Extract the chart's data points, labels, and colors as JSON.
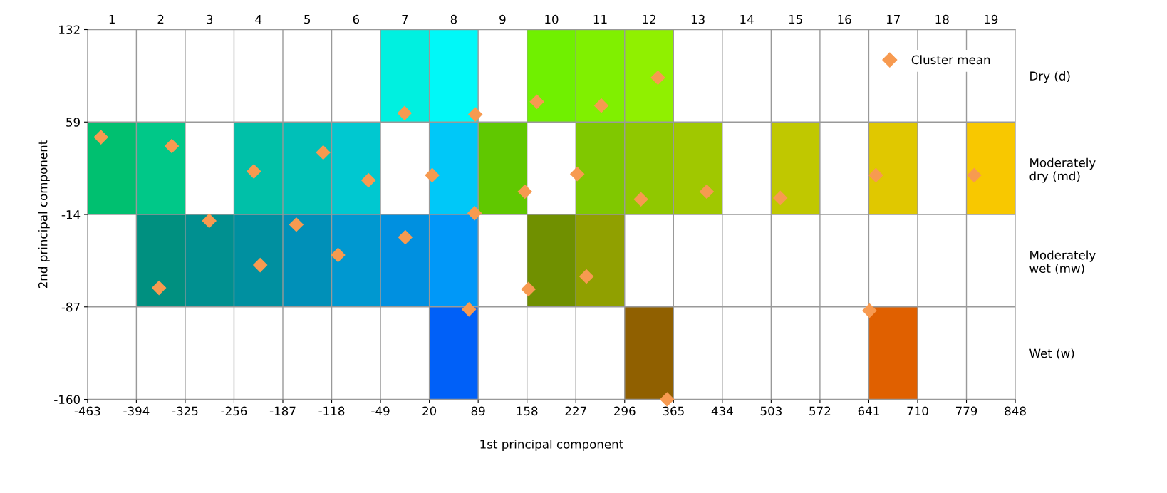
{
  "chart_data": {
    "type": "scatter",
    "xlabel": "1st principal component",
    "ylabel": "2nd principal component",
    "xlim": [
      -463,
      848
    ],
    "xticks": [
      -463,
      -394,
      -325,
      -256,
      -187,
      -118,
      -49,
      20,
      89,
      158,
      227,
      296,
      365,
      434,
      503,
      572,
      641,
      710,
      779,
      848
    ],
    "ylim": [
      -160,
      132
    ],
    "yticks": [
      -160,
      -87,
      -14,
      59,
      132
    ],
    "x2lim": [
      0.5,
      19.5
    ],
    "x2ticks": [
      1,
      2,
      3,
      4,
      5,
      6,
      7,
      8,
      9,
      10,
      11,
      12,
      13,
      14,
      15,
      16,
      17,
      18,
      19
    ],
    "y2_categories": [
      "Dry (d)",
      "Moderately\ndry (md)",
      "Moderately\nwet (mw)",
      "Wet (w)"
    ],
    "grid": true,
    "legend": "top right",
    "series": [
      {
        "type": "bar",
        "x": [
          -14.5,
          54.5,
          192.5,
          261.5,
          330.5
        ],
        "base": [
          59,
          59,
          59,
          59,
          59
        ],
        "values": [
          73,
          73,
          73,
          73,
          73
        ],
        "colors": [
          "#00f0e0",
          "#00f8f8",
          "#70f000",
          "#80f000",
          "#90f000"
        ]
      },
      {
        "type": "bar",
        "x": [
          -428.5,
          -359.5,
          -221.5,
          -152.5,
          -83.5,
          54.5,
          123.5,
          261.5,
          330.5,
          399.5,
          537.5,
          675.5,
          813.5
        ],
        "base": [
          -14,
          -14,
          -14,
          -14,
          -14,
          -14,
          -14,
          -14,
          -14,
          -14,
          -14,
          -14,
          -14
        ],
        "values": [
          73,
          73,
          73,
          73,
          73,
          73,
          73,
          73,
          73,
          73,
          73,
          73,
          73
        ],
        "colors": [
          "#00c070",
          "#00c888",
          "#00c0a8",
          "#00c0b8",
          "#00c8d0",
          "#00c8f8",
          "#60c800",
          "#80c800",
          "#90c800",
          "#a0c800",
          "#c0c800",
          "#e0c800",
          "#f8c800"
        ]
      },
      {
        "type": "bar",
        "x": [
          -359.5,
          -290.5,
          -221.5,
          -152.5,
          -83.5,
          -14.5,
          54.5,
          192.5,
          261.5
        ],
        "base": [
          -87,
          -87,
          -87,
          -87,
          -87,
          -87,
          -87,
          -87,
          -87
        ],
        "values": [
          73,
          73,
          73,
          73,
          73,
          73,
          73,
          73,
          73
        ],
        "colors": [
          "#009080",
          "#009090",
          "#0090a0",
          "#0090b8",
          "#0098d0",
          "#0090e0",
          "#0098f8",
          "#709000",
          "#90a000"
        ]
      },
      {
        "type": "bar",
        "x": [
          54.5,
          330.5,
          675.5
        ],
        "base": [
          -160,
          -160,
          -160
        ],
        "values": [
          73,
          73,
          73
        ],
        "colors": [
          "#0060f8",
          "#906000",
          "#e06000"
        ]
      },
      {
        "name": "Cluster mean",
        "color": "#f79a50",
        "marker": "diamond",
        "x": [
          -444,
          -362,
          -344,
          -291,
          -228,
          -219,
          -168,
          -130,
          -109,
          -66,
          -15,
          -14,
          24,
          76,
          84,
          85,
          155,
          160,
          172,
          229,
          242,
          263,
          319,
          343,
          356,
          412,
          516,
          642,
          651,
          790
        ],
        "values": [
          47,
          -72,
          40,
          -19,
          20,
          -54,
          -22,
          35,
          -46,
          13,
          66,
          -32,
          17,
          -89,
          -13,
          65,
          4,
          -73,
          75,
          18,
          -63,
          72,
          -2,
          94,
          -160,
          4,
          -1,
          -90,
          17,
          17
        ]
      }
    ]
  }
}
